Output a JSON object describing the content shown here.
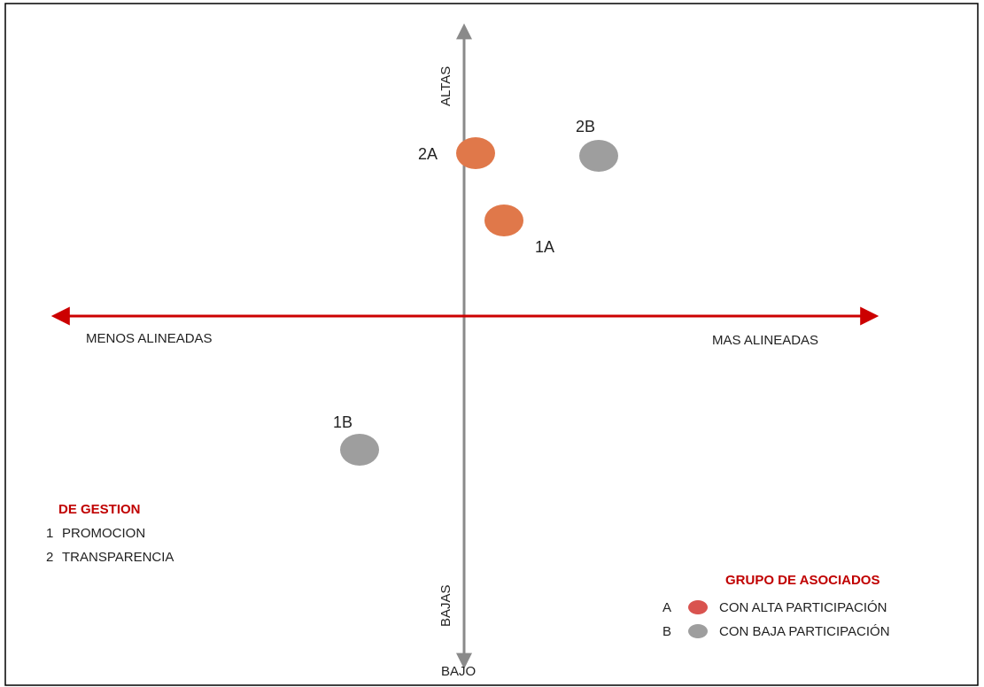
{
  "axes": {
    "vertical_top": "ALTAS",
    "vertical_bottom": "BAJAS",
    "horizontal_left": "MENOS ALINEADAS",
    "horizontal_right": "MAS ALINEADAS",
    "bottom_caption": "BAJO"
  },
  "points": [
    {
      "label": "2A",
      "group": "A"
    },
    {
      "label": "2B",
      "group": "B"
    },
    {
      "label": "1A",
      "group": "A"
    },
    {
      "label": "1B",
      "group": "B"
    }
  ],
  "management_legend": {
    "title": "DE GESTION",
    "items": [
      {
        "key": "1",
        "text": "PROMOCION"
      },
      {
        "key": "2",
        "text": "TRANSPARENCIA"
      }
    ]
  },
  "group_legend": {
    "title": "GRUPO DE ASOCIADOS",
    "items": [
      {
        "key": "A",
        "text": "CON ALTA PARTICIPACIÓN"
      },
      {
        "key": "B",
        "text": "CON BAJA PARTICIPACIÓN"
      }
    ]
  },
  "colors": {
    "group_a": "#e0784a",
    "group_b": "#9e9e9e",
    "horizontal_axis": "#cc0000",
    "vertical_axis": "#8a8a8a",
    "legend_title": "#c00000",
    "border": "#000000"
  }
}
